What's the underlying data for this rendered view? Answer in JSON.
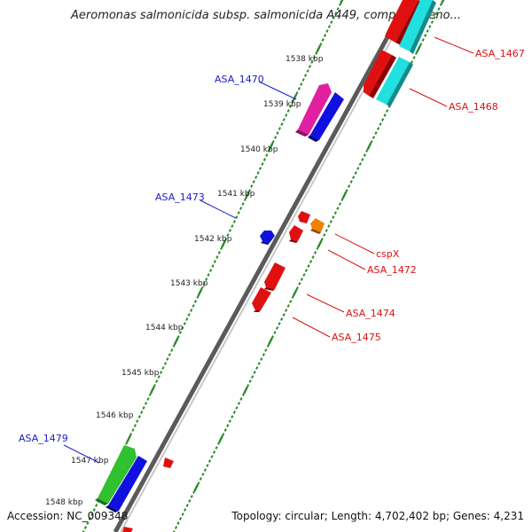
{
  "title": "Aeromonas salmonicida subsp. salmonicida A449, complete geno...",
  "accession": "Accession: NC_009348",
  "summary": "Topology: circular; Length: 4,702,402 bp; Genes: 4,231",
  "colors": {
    "backbone": "#8a8a8a",
    "tick": "#2a8a2a",
    "label_forward": "#1a1acc",
    "label_reverse": "#dd1111",
    "tick_label": "#222222"
  },
  "scale_labels": [
    "1538 kbp",
    "1539 kbp",
    "1540 kbp",
    "1541 kbp",
    "1542 kbp",
    "1543 kbp",
    "1544 kbp",
    "1545 kbp",
    "1546 kbp",
    "1547 kbp",
    "1548 kbp"
  ],
  "gene_labels": [
    {
      "text": "ASA_1467",
      "strand": "reverse"
    },
    {
      "text": "ASA_1468",
      "strand": "reverse"
    },
    {
      "text": "ASA_1470",
      "strand": "forward"
    },
    {
      "text": "ASA_1473",
      "strand": "forward"
    },
    {
      "text": "cspX",
      "strand": "reverse"
    },
    {
      "text": "ASA_1472",
      "strand": "reverse"
    },
    {
      "text": "ASA_1474",
      "strand": "reverse"
    },
    {
      "text": "ASA_1475",
      "strand": "reverse"
    },
    {
      "text": "ASA_1479",
      "strand": "forward"
    }
  ],
  "feature_colors": {
    "red": "#e01010",
    "cyan": "#20e0e0",
    "magenta": "#e020a0",
    "blue": "#1010e0",
    "green": "#30c030",
    "orange": "#f08000"
  }
}
